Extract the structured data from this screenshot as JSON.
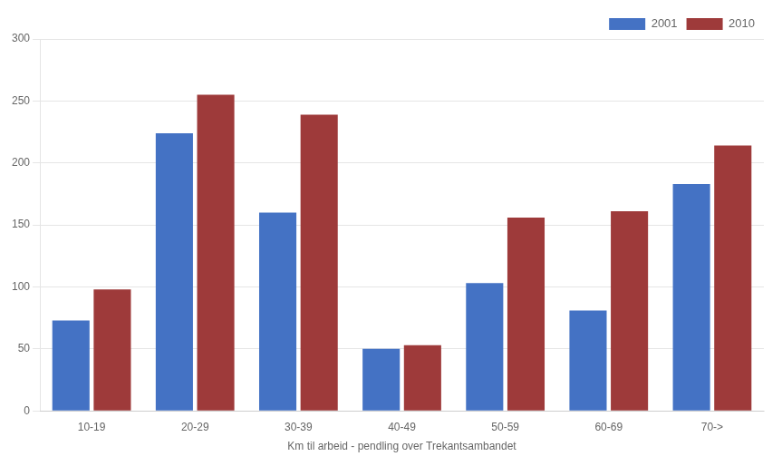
{
  "chart_data": {
    "type": "bar",
    "xlabel": "Km til arbeid - pendling over Trekantsambandet",
    "categories": [
      "10-19",
      "20-29",
      "30-39",
      "40-49",
      "50-59",
      "60-69",
      "70->"
    ],
    "series": [
      {
        "name": "2001",
        "color": "#4472C4",
        "values": [
          73,
          224,
          160,
          50,
          103,
          81,
          183
        ]
      },
      {
        "name": "2010",
        "color": "#9E3A3A",
        "values": [
          98,
          255,
          239,
          53,
          156,
          161,
          214
        ]
      }
    ],
    "ylim": [
      0,
      300
    ],
    "yticks": [
      0,
      50,
      100,
      150,
      200,
      250,
      300
    ],
    "grid": true,
    "legend": "upper right"
  }
}
